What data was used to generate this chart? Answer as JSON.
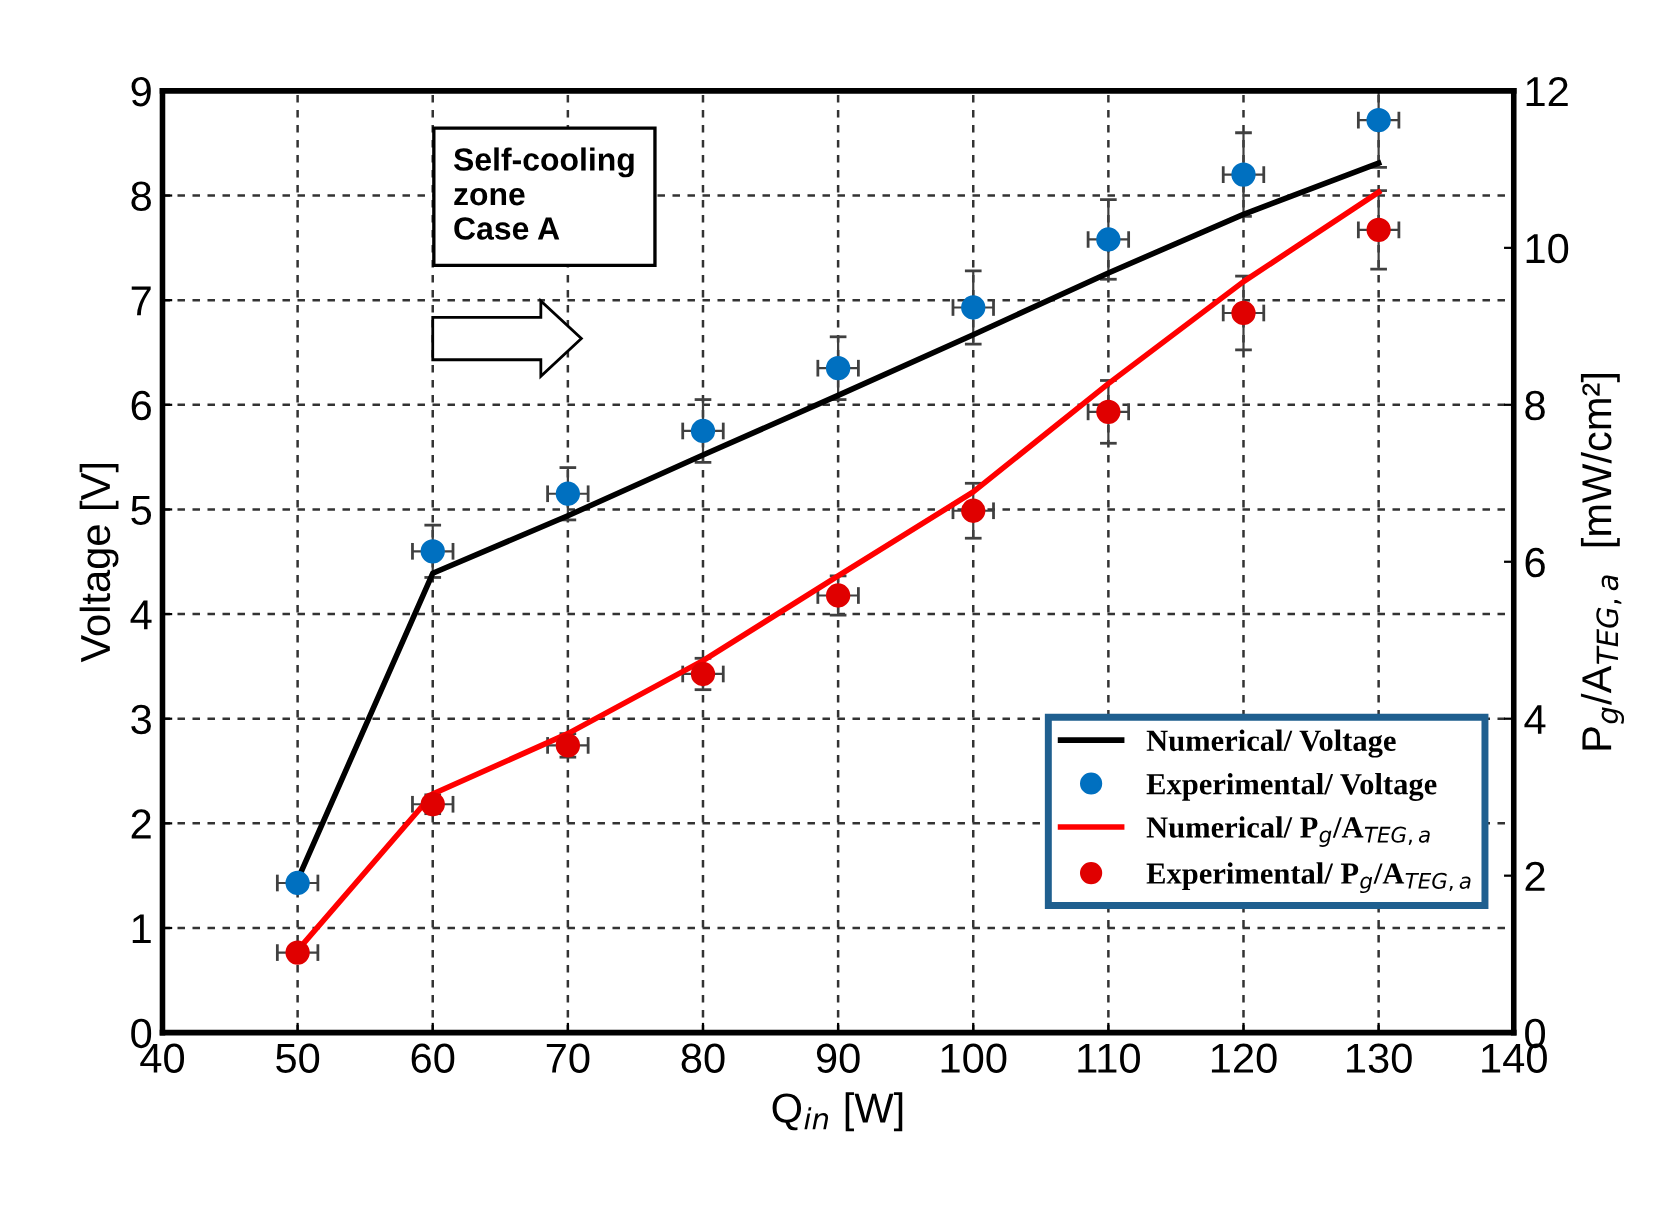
{
  "chart_data": {
    "type": "line",
    "xlabel": "Q$_{in}$ [W]",
    "ylabel": "Voltage [V]",
    "y2label": "P$_{g}$/A$_{TEG,a}$  [mW/cm²]",
    "x": [
      50,
      60,
      70,
      80,
      90,
      100,
      110,
      120,
      130
    ],
    "series": [
      {
        "name": "Numerical/ Voltage",
        "color": "#000000",
        "values": [
          1.46,
          4.39,
          4.94,
          5.52,
          6.09,
          6.67,
          7.26,
          7.82,
          8.31
        ]
      },
      {
        "name": "Experimental/ Voltage",
        "type": "scatter",
        "color": "#0070c0",
        "marker": "circle",
        "values": [
          1.43,
          4.6,
          5.15,
          5.75,
          6.35,
          6.93,
          7.58,
          8.2,
          8.72
        ],
        "errors": [
          null,
          0.25,
          0.25,
          0.3,
          0.3,
          0.35,
          0.38,
          0.4,
          0.45
        ],
        "xerrors": [
          1.5,
          1.5,
          1.5,
          1.5,
          1.5,
          1.5,
          1.5,
          1.5,
          1.5
        ]
      },
      {
        "name": "Numerical/ P$_{g}$/A$_{TEG,a}$",
        "axis": "y2",
        "color": "#ff0000",
        "values": [
          1.05,
          3.04,
          3.81,
          4.74,
          5.82,
          6.89,
          8.27,
          9.57,
          10.71
        ]
      },
      {
        "name": "Experimental/ P$_{g}$/A$_{TEG,a}$",
        "type": "scatter",
        "axis": "y2",
        "color": "#e00000",
        "marker": "circle",
        "values": [
          1.02,
          2.91,
          3.66,
          4.57,
          5.57,
          6.65,
          7.91,
          9.17,
          10.23
        ],
        "errors": [
          null,
          0.12,
          0.15,
          0.2,
          0.25,
          0.35,
          0.4,
          0.47,
          0.5
        ],
        "xerrors": [
          1.5,
          1.5,
          1.5,
          1.5,
          1.5,
          1.5,
          1.5,
          1.5,
          1.5
        ]
      }
    ],
    "xlim": [
      40,
      140
    ],
    "xticks": [
      40,
      50,
      60,
      70,
      80,
      90,
      100,
      110,
      120,
      130,
      140
    ],
    "ylim": [
      0,
      9
    ],
    "yticks": [
      0,
      1,
      2,
      3,
      4,
      5,
      6,
      7,
      8,
      9
    ],
    "y2lim": [
      0,
      12
    ],
    "y2ticks": [
      0,
      2,
      4,
      6,
      8,
      10,
      12
    ],
    "grid": true,
    "legend": "right",
    "annotations": [
      "Self-cooling\nzone\nCase A"
    ]
  }
}
